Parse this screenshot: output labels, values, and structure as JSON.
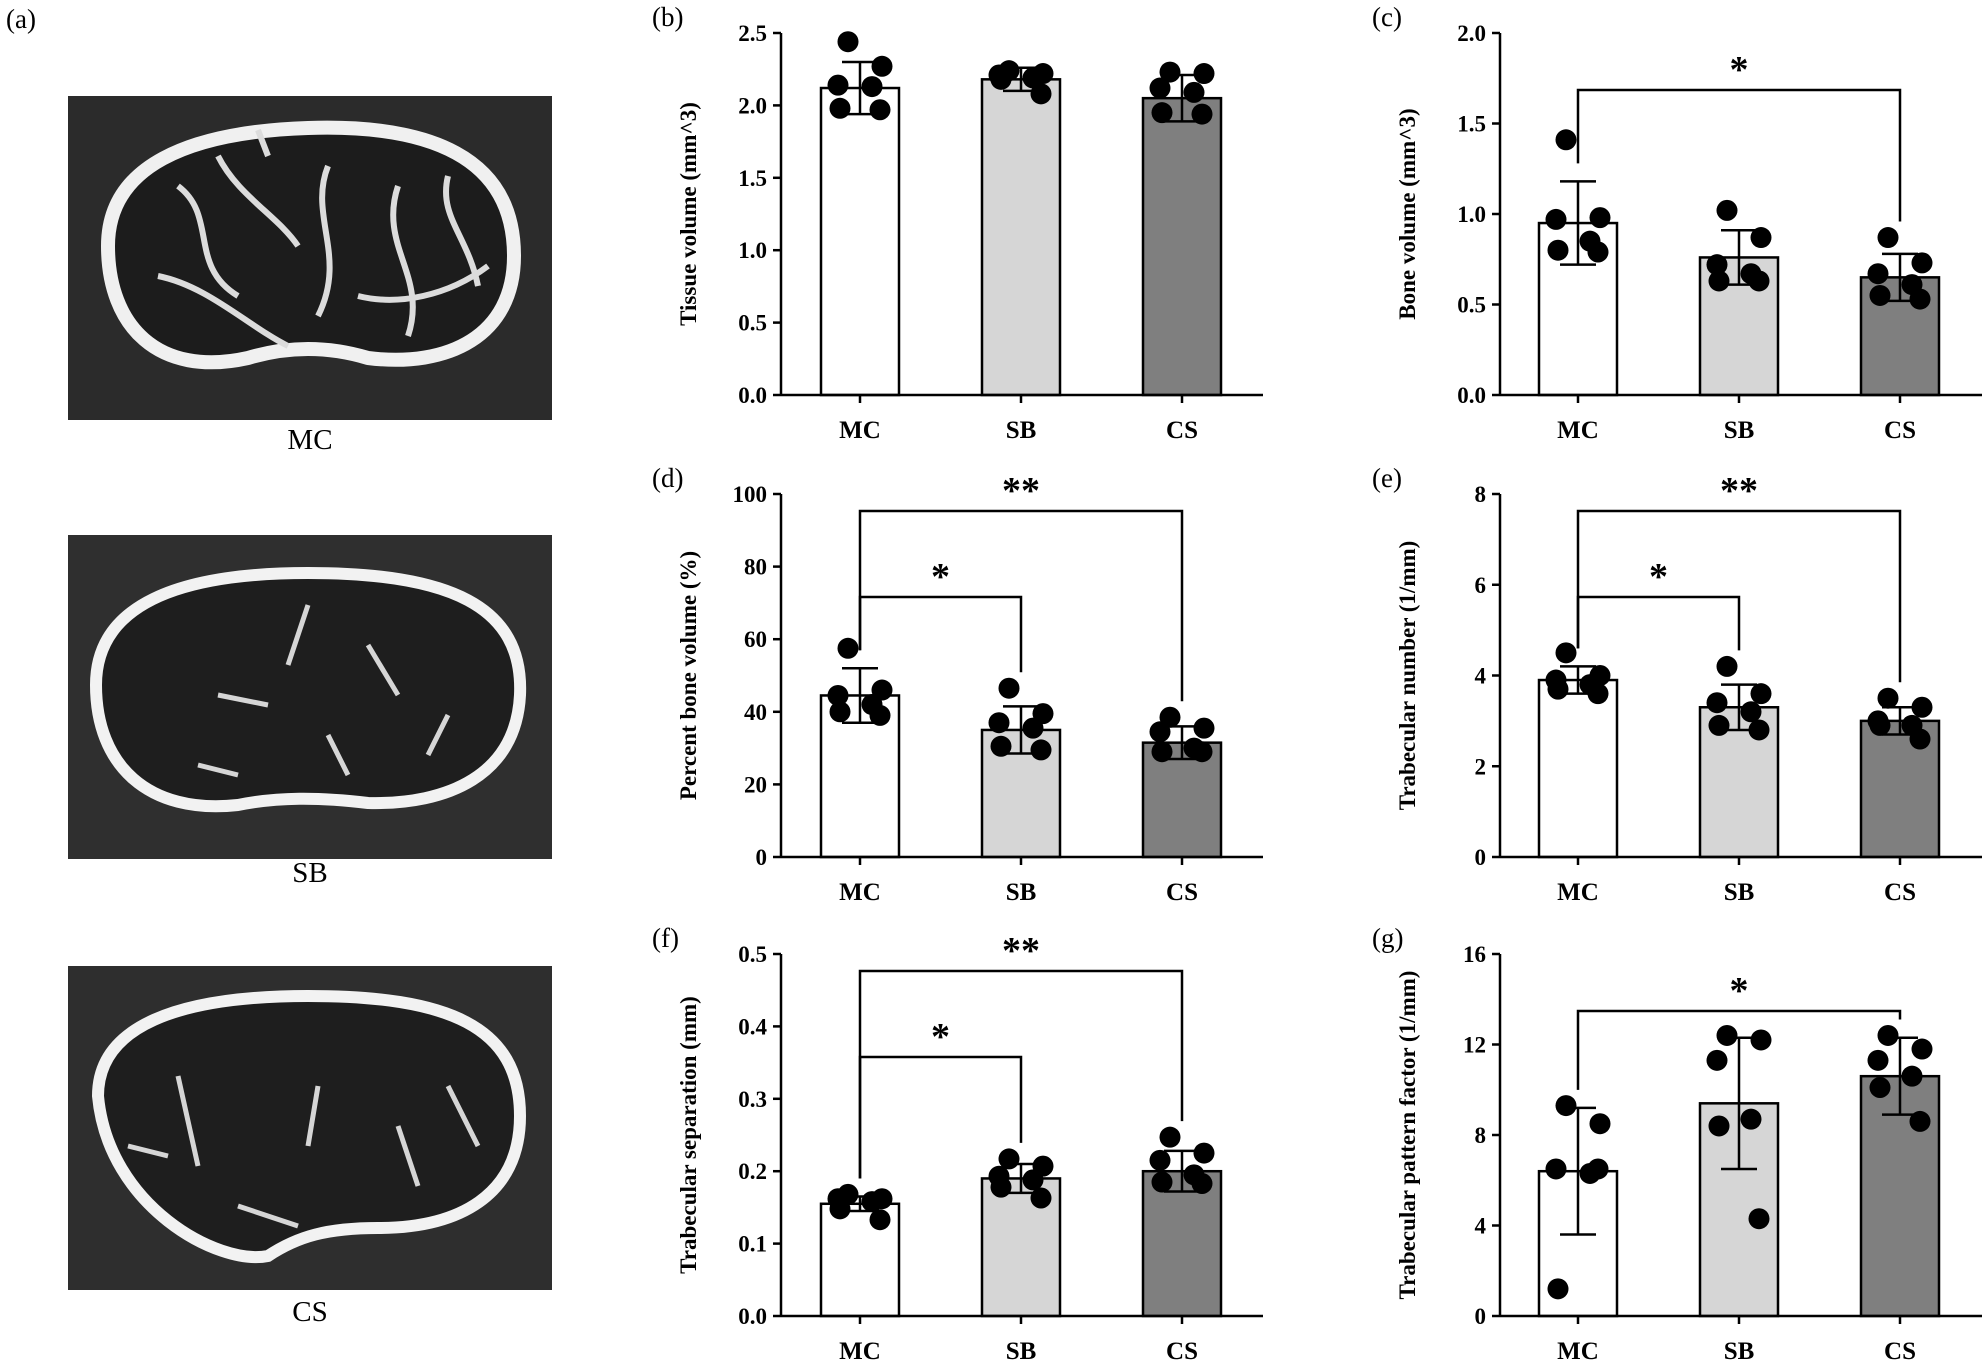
{
  "images_panel": {
    "letter": "(a)",
    "captions": [
      "MC",
      "SB",
      "CS"
    ]
  },
  "colors": {
    "MC": "#ffffff",
    "SB": "#d6d6d6",
    "CS": "#7f7f7f",
    "ink": "#000000"
  },
  "chart_data": [
    {
      "panel": "(b)",
      "type": "bar",
      "categories": [
        "MC",
        "SB",
        "CS"
      ],
      "ylabel": "Tissue volume (mm^3)",
      "ylim": [
        0,
        2.5
      ],
      "yticks": [
        "0.0",
        "0.5",
        "1.0",
        "1.5",
        "2.0",
        "2.5"
      ],
      "values": [
        2.12,
        2.18,
        2.05
      ],
      "sd": [
        0.18,
        0.08,
        0.16
      ],
      "points": [
        [
          2.44,
          2.27,
          2.14,
          2.13,
          1.98,
          1.97
        ],
        [
          2.24,
          2.22,
          2.21,
          2.19,
          2.18,
          2.08
        ],
        [
          2.23,
          2.22,
          2.12,
          2.09,
          1.95,
          1.94
        ]
      ],
      "significance": []
    },
    {
      "panel": "(c)",
      "type": "bar",
      "categories": [
        "MC",
        "SB",
        "CS"
      ],
      "ylabel": "Bone volume (mm^3)",
      "ylim": [
        0,
        2.0
      ],
      "yticks": [
        "0.0",
        "0.5",
        "1.0",
        "1.5",
        "2.0"
      ],
      "values": [
        0.95,
        0.76,
        0.65
      ],
      "sd": [
        0.23,
        0.15,
        0.13
      ],
      "points": [
        [
          1.41,
          0.98,
          0.97,
          0.85,
          0.8,
          0.79
        ],
        [
          1.02,
          0.87,
          0.72,
          0.67,
          0.63,
          0.63
        ],
        [
          0.87,
          0.73,
          0.67,
          0.61,
          0.55,
          0.53
        ]
      ],
      "significance": [
        {
          "from": 0,
          "to": 2,
          "label": "*",
          "level": 1
        }
      ]
    },
    {
      "panel": "(d)",
      "type": "bar",
      "categories": [
        "MC",
        "SB",
        "CS"
      ],
      "ylabel": "Percent bone volume (%)",
      "ylim": [
        0,
        100
      ],
      "yticks": [
        "0",
        "20",
        "40",
        "60",
        "80",
        "100"
      ],
      "values": [
        44.5,
        35.0,
        31.5
      ],
      "sd": [
        7.5,
        6.5,
        4.5
      ],
      "points": [
        [
          57.5,
          46.0,
          44.5,
          42.0,
          40.0,
          39.0
        ],
        [
          46.5,
          39.5,
          37.0,
          35.5,
          30.5,
          29.5
        ],
        [
          38.5,
          35.5,
          34.5,
          30.0,
          29.0,
          29.0
        ]
      ],
      "significance": [
        {
          "from": 0,
          "to": 2,
          "label": "**",
          "level": 2
        },
        {
          "from": 0,
          "to": 1,
          "label": "*",
          "level": 1
        }
      ]
    },
    {
      "panel": "(e)",
      "type": "bar",
      "categories": [
        "MC",
        "SB",
        "CS"
      ],
      "ylabel": "Trabecular number (1/mm)",
      "ylim": [
        0,
        8
      ],
      "yticks": [
        "0",
        "2",
        "4",
        "6",
        "8"
      ],
      "values": [
        3.9,
        3.3,
        3.0
      ],
      "sd": [
        0.3,
        0.5,
        0.3
      ],
      "points": [
        [
          4.5,
          4.0,
          3.9,
          3.8,
          3.7,
          3.6
        ],
        [
          4.2,
          3.6,
          3.4,
          3.2,
          2.9,
          2.8
        ],
        [
          3.5,
          3.3,
          3.0,
          2.9,
          2.9,
          2.6
        ]
      ],
      "significance": [
        {
          "from": 0,
          "to": 2,
          "label": "**",
          "level": 2
        },
        {
          "from": 0,
          "to": 1,
          "label": "*",
          "level": 1
        }
      ]
    },
    {
      "panel": "(f)",
      "type": "bar",
      "categories": [
        "MC",
        "SB",
        "CS"
      ],
      "ylabel": "Trabecular separation (mm)",
      "ylim": [
        0,
        0.5
      ],
      "yticks": [
        "0.0",
        "0.1",
        "0.2",
        "0.3",
        "0.4",
        "0.5"
      ],
      "values": [
        0.155,
        0.19,
        0.2
      ],
      "sd": [
        0.01,
        0.02,
        0.028
      ],
      "points": [
        [
          0.168,
          0.162,
          0.162,
          0.158,
          0.148,
          0.133
        ],
        [
          0.217,
          0.207,
          0.193,
          0.188,
          0.178,
          0.163
        ],
        [
          0.247,
          0.225,
          0.215,
          0.195,
          0.185,
          0.183
        ]
      ],
      "significance": [
        {
          "from": 0,
          "to": 2,
          "label": "**",
          "level": 2
        },
        {
          "from": 0,
          "to": 1,
          "label": "*",
          "level": 1
        }
      ]
    },
    {
      "panel": "(g)",
      "type": "bar",
      "categories": [
        "MC",
        "SB",
        "CS"
      ],
      "ylabel": "Trabecular pattern factor (1/mm)",
      "ylim": [
        0,
        16
      ],
      "yticks": [
        "0",
        "4",
        "8",
        "12",
        "16"
      ],
      "values": [
        6.4,
        9.4,
        10.6
      ],
      "sd": [
        2.8,
        2.9,
        1.7
      ],
      "points": [
        [
          9.3,
          8.5,
          6.5,
          6.3,
          1.2,
          6.5
        ],
        [
          12.4,
          12.2,
          11.3,
          8.7,
          8.4,
          4.3
        ],
        [
          12.4,
          11.8,
          11.3,
          10.6,
          10.1,
          8.6
        ]
      ],
      "significance": [
        {
          "from": 0,
          "to": 2,
          "label": "*",
          "level": 1
        }
      ]
    }
  ]
}
